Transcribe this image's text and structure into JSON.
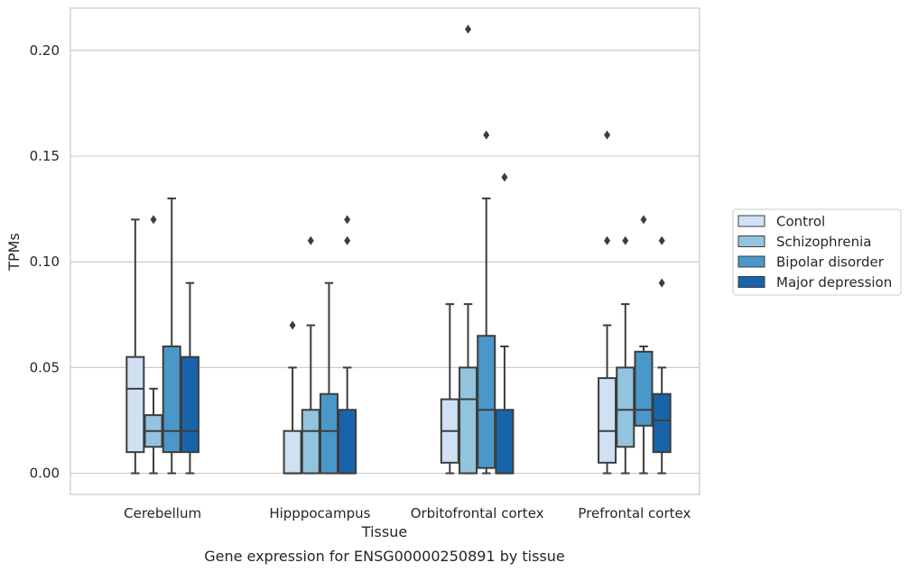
{
  "chart_data": {
    "type": "boxplot",
    "title": "",
    "caption": "Gene expression for ENSG00000250891 by tissue",
    "xlabel": "Tissue",
    "ylabel": "TPMs",
    "ylim": [
      -0.01,
      0.22
    ],
    "yticks": [
      0.0,
      0.05,
      0.1,
      0.15,
      0.2
    ],
    "ytick_labels": [
      "0.00",
      "0.05",
      "0.10",
      "0.15",
      "0.20"
    ],
    "grid": "horizontal",
    "legend_position": "right",
    "categories": [
      "Cerebellum",
      "Hipppocampus",
      "Orbitofrontal cortex",
      "Prefrontal cortex"
    ],
    "series": [
      {
        "name": "Control",
        "color": "#cfe1f2",
        "boxes": [
          {
            "q1": 0.01,
            "median": 0.04,
            "q3": 0.055,
            "whisker_low": 0.0,
            "whisker_high": 0.12,
            "outliers": []
          },
          {
            "q1": 0.0,
            "median": 0.0,
            "q3": 0.02,
            "whisker_low": 0.0,
            "whisker_high": 0.05,
            "outliers": [
              0.07
            ]
          },
          {
            "q1": 0.005,
            "median": 0.02,
            "q3": 0.035,
            "whisker_low": 0.0,
            "whisker_high": 0.08,
            "outliers": []
          },
          {
            "q1": 0.005,
            "median": 0.02,
            "q3": 0.045,
            "whisker_low": 0.0,
            "whisker_high": 0.07,
            "outliers": [
              0.11,
              0.16
            ]
          }
        ]
      },
      {
        "name": "Schizophrenia",
        "color": "#93c4de",
        "boxes": [
          {
            "q1": 0.0125,
            "median": 0.02,
            "q3": 0.0275,
            "whisker_low": 0.0,
            "whisker_high": 0.04,
            "outliers": [
              0.12
            ]
          },
          {
            "q1": 0.0,
            "median": 0.02,
            "q3": 0.03,
            "whisker_low": 0.0,
            "whisker_high": 0.07,
            "outliers": [
              0.11
            ]
          },
          {
            "q1": 0.0,
            "median": 0.035,
            "q3": 0.05,
            "whisker_low": 0.0,
            "whisker_high": 0.08,
            "outliers": [
              0.21
            ]
          },
          {
            "q1": 0.0125,
            "median": 0.03,
            "q3": 0.05,
            "whisker_low": 0.0,
            "whisker_high": 0.08,
            "outliers": [
              0.11
            ]
          }
        ]
      },
      {
        "name": "Bipolar disorder",
        "color": "#4a98c9",
        "boxes": [
          {
            "q1": 0.01,
            "median": 0.02,
            "q3": 0.06,
            "whisker_low": 0.0,
            "whisker_high": 0.13,
            "outliers": []
          },
          {
            "q1": 0.0,
            "median": 0.02,
            "q3": 0.0375,
            "whisker_low": 0.0,
            "whisker_high": 0.09,
            "outliers": []
          },
          {
            "q1": 0.0025,
            "median": 0.03,
            "q3": 0.065,
            "whisker_low": 0.0,
            "whisker_high": 0.13,
            "outliers": [
              0.16
            ]
          },
          {
            "q1": 0.0225,
            "median": 0.03,
            "q3": 0.0575,
            "whisker_low": 0.0,
            "whisker_high": 0.06,
            "outliers": [
              0.12
            ]
          }
        ]
      },
      {
        "name": "Major depression",
        "color": "#1764ab",
        "boxes": [
          {
            "q1": 0.01,
            "median": 0.02,
            "q3": 0.055,
            "whisker_low": 0.0,
            "whisker_high": 0.09,
            "outliers": []
          },
          {
            "q1": 0.0,
            "median": 0.0,
            "q3": 0.03,
            "whisker_low": 0.0,
            "whisker_high": 0.05,
            "outliers": [
              0.11,
              0.12
            ]
          },
          {
            "q1": 0.0,
            "median": 0.0,
            "q3": 0.03,
            "whisker_low": 0.0,
            "whisker_high": 0.06,
            "outliers": [
              0.14
            ]
          },
          {
            "q1": 0.01,
            "median": 0.025,
            "q3": 0.0375,
            "whisker_low": 0.0,
            "whisker_high": 0.05,
            "outliers": [
              0.09,
              0.11
            ]
          }
        ]
      }
    ]
  }
}
